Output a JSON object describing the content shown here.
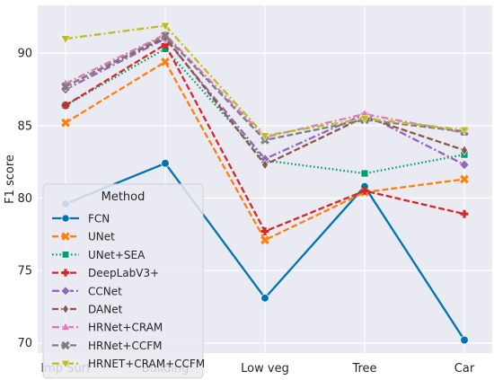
{
  "chart_data": {
    "type": "line",
    "categories": [
      "Imp Surf",
      "Building",
      "Low veg",
      "Tree",
      "Car"
    ],
    "ylabel": "F1 score",
    "xlabel": "",
    "ylim": [
      69.3,
      93.3
    ],
    "yticks": [
      70,
      75,
      80,
      85,
      90
    ],
    "grid": true,
    "background": "#eaeaf2",
    "legend": {
      "title": "Method",
      "placement": "lower-left"
    },
    "series": [
      {
        "name": "FCN",
        "color": "#0173b2",
        "linestyle": "solid",
        "marker": "circle",
        "values": [
          79.6,
          82.4,
          73.1,
          80.8,
          70.2
        ]
      },
      {
        "name": "UNet",
        "color": "#ff7f0e",
        "linestyle": "dashed",
        "marker": "x",
        "values": [
          85.2,
          89.4,
          77.1,
          80.4,
          81.3
        ]
      },
      {
        "name": "UNet+SEA",
        "color": "#029e73",
        "linestyle": "dotted",
        "marker": "square",
        "values": [
          86.4,
          90.3,
          82.6,
          81.7,
          83.0
        ]
      },
      {
        "name": "DeepLabV3+",
        "color": "#d62728",
        "linestyle": "dashed",
        "marker": "plus",
        "values": [
          86.4,
          90.6,
          77.7,
          80.5,
          78.9
        ]
      },
      {
        "name": "CCNet",
        "color": "#9467bd",
        "linestyle": "dashdot",
        "marker": "diamond",
        "values": [
          87.5,
          91.0,
          82.7,
          85.8,
          82.3
        ]
      },
      {
        "name": "DANet",
        "color": "#8c564b",
        "linestyle": "dashed",
        "marker": "thin-diamond",
        "values": [
          87.7,
          91.1,
          82.3,
          85.6,
          83.3
        ]
      },
      {
        "name": "HRNet+CRAM",
        "color": "#e377c2",
        "linestyle": "dashdot",
        "marker": "triangle-up",
        "values": [
          87.9,
          91.3,
          84.2,
          85.8,
          84.5
        ]
      },
      {
        "name": "HRNet+CCFM",
        "color": "#7f7f7f",
        "linestyle": "dashed",
        "marker": "x",
        "values": [
          87.7,
          91.2,
          84.0,
          85.4,
          84.6
        ]
      },
      {
        "name": "HRNET+CRAM+CCFM",
        "color": "#bcbd22",
        "linestyle": "dashdot",
        "marker": "triangle-down",
        "values": [
          91.0,
          91.9,
          84.3,
          85.5,
          84.7
        ]
      }
    ]
  }
}
